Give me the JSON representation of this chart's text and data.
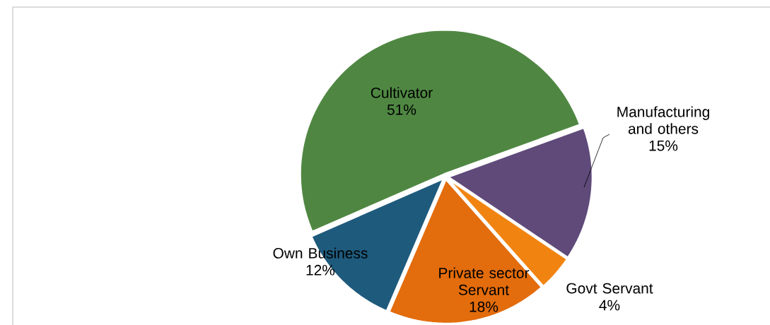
{
  "chart_data": {
    "type": "pie",
    "categories": [
      "Manufacturing and others",
      "Govt Servant",
      "Private sector Servant",
      "Own Business",
      "Cultivator"
    ],
    "values": [
      15,
      4,
      18,
      12,
      51
    ],
    "value_labels": [
      "15%",
      "4%",
      "18%",
      "12%",
      "51%"
    ],
    "colors": [
      "#5f4a7a",
      "#f18411",
      "#e36c0c",
      "#1e5a7c",
      "#4f8742"
    ]
  }
}
